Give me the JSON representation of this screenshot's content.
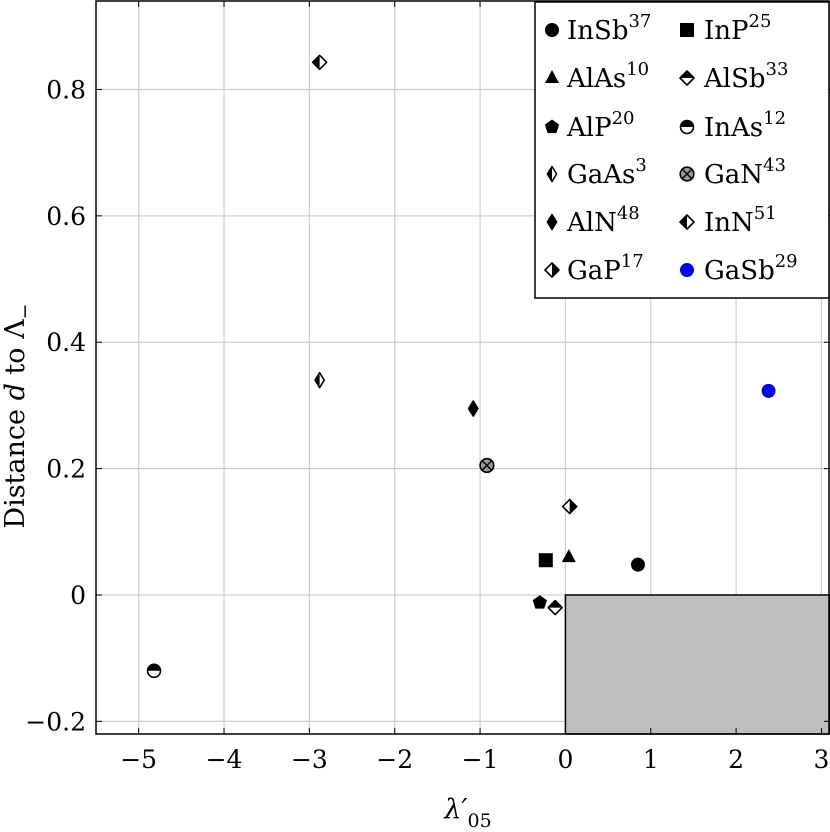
{
  "chart_data": {
    "type": "scatter",
    "title": "",
    "xlabel_main": "λ′",
    "xlabel_sub": "05",
    "ylabel_prefix": "Distance ",
    "ylabel_var": "d",
    "ylabel_mid": " to ",
    "ylabel_sym": "Λ",
    "ylabel_sub": "−",
    "xlim": [
      -5.5,
      3.1
    ],
    "ylim": [
      -0.22,
      0.94
    ],
    "xticks": [
      -5,
      -4,
      -3,
      -2,
      -1,
      0,
      1,
      2,
      3
    ],
    "xtick_labels": [
      "−5",
      "−4",
      "−3",
      "−2",
      "−1",
      "0",
      "1",
      "2",
      "3"
    ],
    "yticks": [
      -0.2,
      0,
      0.2,
      0.4,
      0.6,
      0.8
    ],
    "ytick_labels": [
      "−0.2",
      "0",
      "0.2",
      "0.4",
      "0.6",
      "0.8"
    ],
    "grid": true,
    "shaded_region": {
      "x_from": 0,
      "y_to": 0,
      "color": "#bfbfbf"
    },
    "legend_position": "top-right",
    "series": [
      {
        "key": "insb",
        "name": "InSb",
        "ref": "37",
        "marker": "circle",
        "color": "#000000",
        "x": 0.85,
        "y": 0.048
      },
      {
        "key": "inp",
        "name": "InP",
        "ref": "25",
        "marker": "square",
        "color": "#000000",
        "x": -0.23,
        "y": 0.055
      },
      {
        "key": "alas",
        "name": "AlAs",
        "ref": "10",
        "marker": "triangle",
        "color": "#000000",
        "x": 0.04,
        "y": 0.06
      },
      {
        "key": "alsb",
        "name": "AlSb",
        "ref": "33",
        "marker": "diamond-half-top",
        "color": "#000000",
        "x": -0.12,
        "y": -0.02
      },
      {
        "key": "alp",
        "name": "AlP",
        "ref": "20",
        "marker": "pentagon",
        "color": "#000000",
        "x": -0.3,
        "y": -0.012
      },
      {
        "key": "inas",
        "name": "InAs",
        "ref": "12",
        "marker": "circle-half-top",
        "color": "#000000",
        "x": -4.82,
        "y": -0.12
      },
      {
        "key": "gaas",
        "name": "GaAs",
        "ref": "3",
        "marker": "thin-diamond-half-left",
        "color": "#000000",
        "x": -2.88,
        "y": 0.34
      },
      {
        "key": "gan",
        "name": "GaN",
        "ref": "43",
        "marker": "circle-cross",
        "color": "#999999",
        "x": -0.92,
        "y": 0.205
      },
      {
        "key": "aln",
        "name": "AlN",
        "ref": "48",
        "marker": "thin-diamond",
        "color": "#000000",
        "x": -1.08,
        "y": 0.295
      },
      {
        "key": "inn",
        "name": "InN",
        "ref": "51",
        "marker": "diamond-half-left",
        "color": "#000000",
        "x": -2.88,
        "y": 0.843
      },
      {
        "key": "gap",
        "name": "GaP",
        "ref": "17",
        "marker": "diamond-half-right",
        "color": "#000000",
        "x": 0.05,
        "y": 0.14
      },
      {
        "key": "gasb",
        "name": "GaSb",
        "ref": "29",
        "marker": "circle",
        "color": "#0000ee",
        "x": 2.38,
        "y": 0.323
      }
    ]
  }
}
